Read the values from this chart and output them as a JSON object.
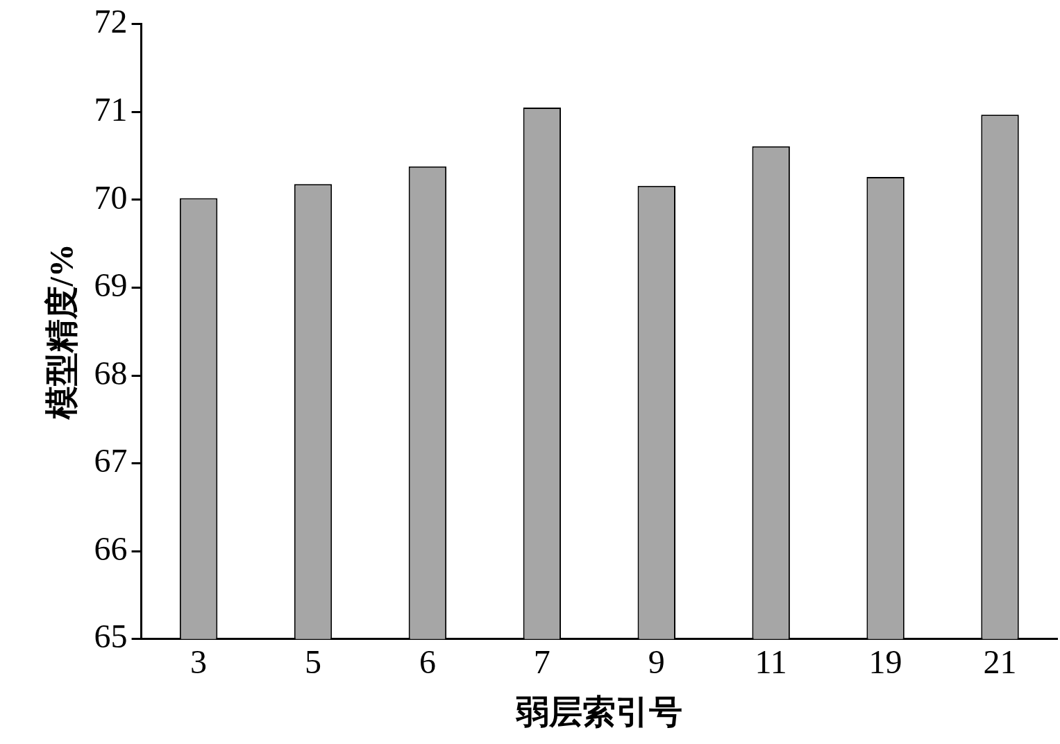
{
  "chart_data": {
    "type": "bar",
    "xlabel": "弱层索引号",
    "ylabel": "模型精度/%",
    "categories": [
      "3",
      "5",
      "6",
      "7",
      "9",
      "11",
      "19",
      "21"
    ],
    "values": [
      70.02,
      70.18,
      70.38,
      71.05,
      70.16,
      70.61,
      70.26,
      70.97
    ],
    "color": "#a6a6a6",
    "ylim": [
      65,
      72
    ],
    "yticks": [
      65,
      66,
      67,
      68,
      69,
      70,
      71,
      72
    ],
    "grid": false,
    "legend": false
  }
}
